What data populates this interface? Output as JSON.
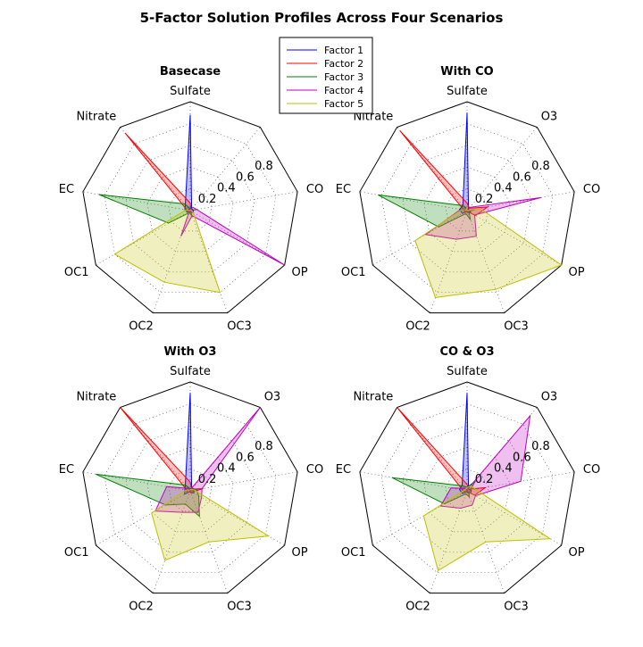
{
  "chart_data": {
    "type": "radar",
    "title": "5-Factor Solution Profiles Across Four Scenarios",
    "spokes": [
      "Sulfate",
      "O3",
      "CO",
      "OP",
      "OC3",
      "OC2",
      "OC1",
      "EC",
      "Nitrate"
    ],
    "rgrid": [
      0.2,
      0.4,
      0.6,
      0.8
    ],
    "rlim": [
      0,
      1
    ],
    "grid": true,
    "legend": {
      "location": "top-center",
      "entries": [
        {
          "name": "Factor 1",
          "color": "#0000ff"
        },
        {
          "name": "Factor 2",
          "color": "#ff0000"
        },
        {
          "name": "Factor 3",
          "color": "#008000"
        },
        {
          "name": "Factor 4",
          "color": "#bf00bf"
        },
        {
          "name": "Factor 5",
          "color": "#bfbf00"
        }
      ]
    },
    "scenarios": [
      {
        "title": "Basecase",
        "spokes": [
          "Sulfate",
          "",
          "CO",
          "OP",
          "OC3",
          "OC2",
          "OC1",
          "EC",
          "Nitrate"
        ],
        "series": [
          {
            "name": "Factor 1",
            "values": [
              0.88,
              0.02,
              0.03,
              0.03,
              0.02,
              0.01,
              0.03,
              0.05,
              0.07
            ]
          },
          {
            "name": "Factor 2",
            "values": [
              0.07,
              0.01,
              0.01,
              0.01,
              0.01,
              0.01,
              0.02,
              0.03,
              0.93
            ]
          },
          {
            "name": "Factor 3",
            "values": [
              0.02,
              0.0,
              0.06,
              0.0,
              0.06,
              0.02,
              0.23,
              0.85,
              0.08
            ]
          },
          {
            "name": "Factor 4",
            "values": [
              0.01,
              0.04,
              0.06,
              1.0,
              0.05,
              0.25,
              0.01,
              0.01,
              0.02
            ]
          },
          {
            "name": "Factor 5",
            "values": [
              0.0,
              0.01,
              0.01,
              0.03,
              0.8,
              0.7,
              0.8,
              0.04,
              0.0
            ]
          }
        ]
      },
      {
        "title": "With CO",
        "spokes": [
          "Sulfate",
          "O3",
          "CO",
          "OP",
          "OC3",
          "OC2",
          "OC1",
          "EC",
          "Nitrate"
        ],
        "series": [
          {
            "name": "Factor 1",
            "values": [
              0.9,
              0.02,
              0.02,
              0.04,
              0.02,
              0.01,
              0.05,
              0.07,
              0.06
            ]
          },
          {
            "name": "Factor 2",
            "values": [
              0.07,
              0.03,
              0.19,
              0.09,
              0.01,
              0.01,
              0.02,
              0.03,
              0.96
            ]
          },
          {
            "name": "Factor 3",
            "values": [
              0.02,
              0.0,
              0.08,
              0.02,
              0.09,
              0.03,
              0.3,
              0.83,
              0.06
            ]
          },
          {
            "name": "Factor 4",
            "values": [
              0.01,
              0.04,
              0.69,
              0.08,
              0.25,
              0.28,
              0.44,
              0.06,
              0.02
            ]
          },
          {
            "name": "Factor 5",
            "values": [
              0.03,
              0.0,
              0.12,
              1.0,
              0.77,
              0.85,
              0.55,
              0.05,
              0.01
            ]
          }
        ]
      },
      {
        "title": "With O3",
        "spokes": [
          "Sulfate",
          "O3",
          "CO",
          "OP",
          "OC3",
          "OC2",
          "OC1",
          "EC",
          "Nitrate"
        ],
        "series": [
          {
            "name": "Factor 1",
            "values": [
              0.9,
              0.02,
              0.03,
              0.04,
              0.02,
              0.01,
              0.06,
              0.05,
              0.07
            ]
          },
          {
            "name": "Factor 2",
            "values": [
              0.08,
              0.02,
              0.12,
              0.02,
              0.01,
              0.01,
              0.03,
              0.03,
              1.0
            ]
          },
          {
            "name": "Factor 3",
            "values": [
              0.02,
              0.03,
              0.06,
              0.09,
              0.25,
              0.13,
              0.26,
              0.88,
              0.07
            ]
          },
          {
            "name": "Factor 4",
            "values": [
              0.01,
              1.0,
              0.11,
              0.12,
              0.21,
              0.21,
              0.37,
              0.22,
              0.03
            ]
          },
          {
            "name": "Factor 5",
            "values": [
              0.01,
              0.02,
              0.04,
              0.83,
              0.5,
              0.68,
              0.41,
              0.04,
              0.01
            ]
          }
        ]
      },
      {
        "title": "CO & O3",
        "spokes": [
          "Sulfate",
          "O3",
          "CO",
          "OP",
          "OC3",
          "OC2",
          "OC1",
          "EC",
          "Nitrate"
        ],
        "series": [
          {
            "name": "Factor 1",
            "values": [
              0.9,
              0.02,
              0.04,
              0.04,
              0.02,
              0.01,
              0.05,
              0.07,
              0.07
            ]
          },
          {
            "name": "Factor 2",
            "values": [
              0.06,
              0.02,
              0.17,
              0.08,
              0.01,
              0.01,
              0.02,
              0.04,
              1.0
            ]
          },
          {
            "name": "Factor 3",
            "values": [
              0.03,
              0.12,
              0.03,
              0.02,
              0.06,
              0.03,
              0.24,
              0.7,
              0.06
            ]
          },
          {
            "name": "Factor 4",
            "values": [
              0.01,
              0.9,
              0.5,
              0.09,
              0.14,
              0.17,
              0.28,
              0.15,
              0.03
            ]
          },
          {
            "name": "Factor 5",
            "values": [
              0.03,
              0.06,
              0.08,
              0.88,
              0.5,
              0.78,
              0.46,
              0.03,
              0.02
            ]
          }
        ]
      }
    ]
  }
}
